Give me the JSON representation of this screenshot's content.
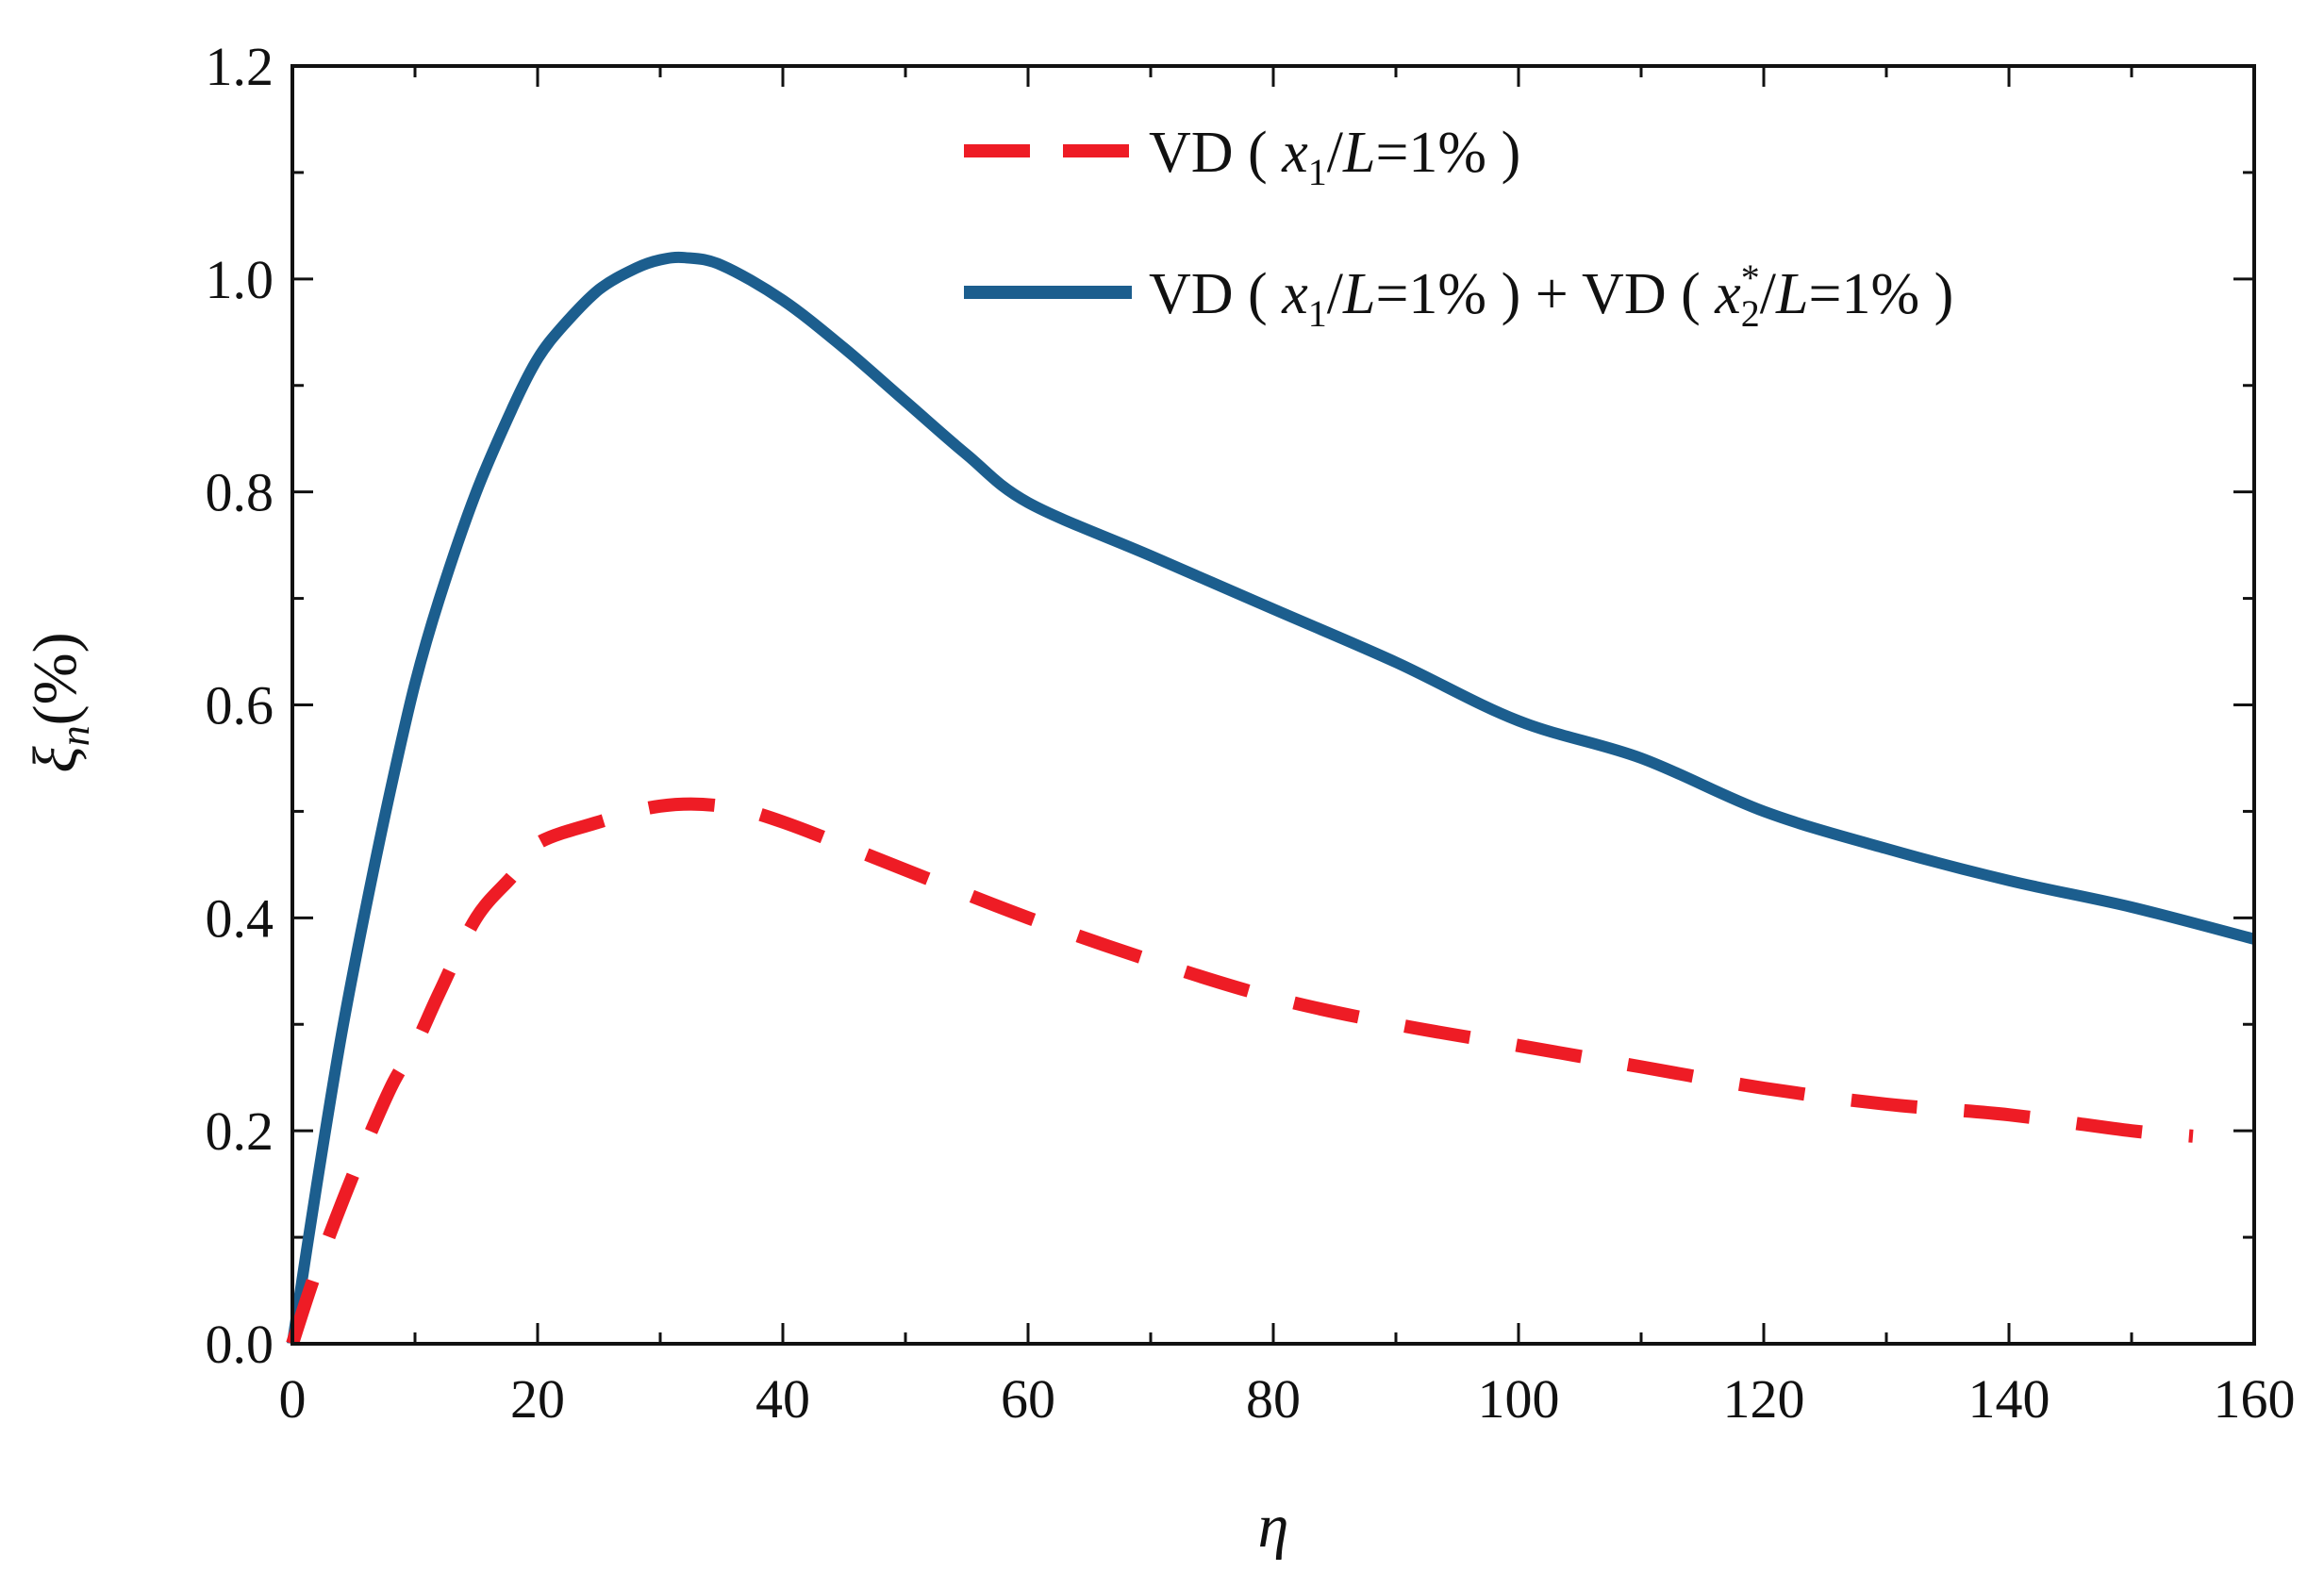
{
  "chart_data": {
    "type": "line",
    "title": "",
    "xlabel": "η",
    "ylabel": "ξ_n(%)",
    "ylabel_parts": {
      "symbol": "ξ",
      "subscript": "n",
      "unit": "(%)"
    },
    "xlim": [
      0,
      160
    ],
    "ylim": [
      0,
      1.2
    ],
    "xticks": [
      "0",
      "20",
      "40",
      "60",
      "80",
      "100",
      "120",
      "140",
      "160"
    ],
    "yticks": [
      "0.0",
      "0.2",
      "0.4",
      "0.6",
      "0.8",
      "1.0",
      "1.2"
    ],
    "legend_position": "top-right",
    "series": [
      {
        "name": "VD ( x1/L=1% )",
        "legend_parts": [
          "VD ( ",
          "x",
          "1",
          "/",
          "L",
          "=1% )"
        ],
        "style": "dashed",
        "color": "#ee1c25",
        "x": [
          0,
          2,
          5,
          8,
          10,
          12,
          15,
          18,
          20,
          25,
          30,
          35,
          40,
          50,
          60,
          70,
          80,
          90,
          100,
          110,
          120,
          130,
          140,
          150,
          155
        ],
        "y": [
          0,
          0.07,
          0.16,
          0.24,
          0.28,
          0.33,
          0.4,
          0.44,
          0.47,
          0.49,
          0.505,
          0.505,
          0.49,
          0.445,
          0.4,
          0.36,
          0.325,
          0.3,
          0.28,
          0.26,
          0.24,
          0.225,
          0.215,
          0.2,
          0.195
        ]
      },
      {
        "name": "VD ( x1/L=1% ) + VD ( x2*/L=1% )",
        "legend_parts": [
          "VD ( ",
          "x",
          "1",
          "/",
          "L",
          "=1% ) + VD ( ",
          "x",
          "2",
          "*",
          "/",
          "L",
          "=1% )"
        ],
        "style": "solid",
        "color": "#1c5e8e",
        "x": [
          0,
          2,
          4,
          6,
          8,
          10,
          12,
          15,
          18,
          20,
          22,
          25,
          28,
          30,
          32,
          35,
          40,
          45,
          50,
          55,
          60,
          70,
          80,
          90,
          100,
          110,
          120,
          130,
          140,
          150,
          160
        ],
        "y": [
          0,
          0.15,
          0.29,
          0.41,
          0.52,
          0.62,
          0.7,
          0.8,
          0.88,
          0.925,
          0.955,
          0.99,
          1.01,
          1.018,
          1.02,
          1.013,
          0.98,
          0.935,
          0.885,
          0.835,
          0.79,
          0.74,
          0.69,
          0.64,
          0.585,
          0.55,
          0.5,
          0.465,
          0.435,
          0.41,
          0.38
        ]
      }
    ]
  }
}
